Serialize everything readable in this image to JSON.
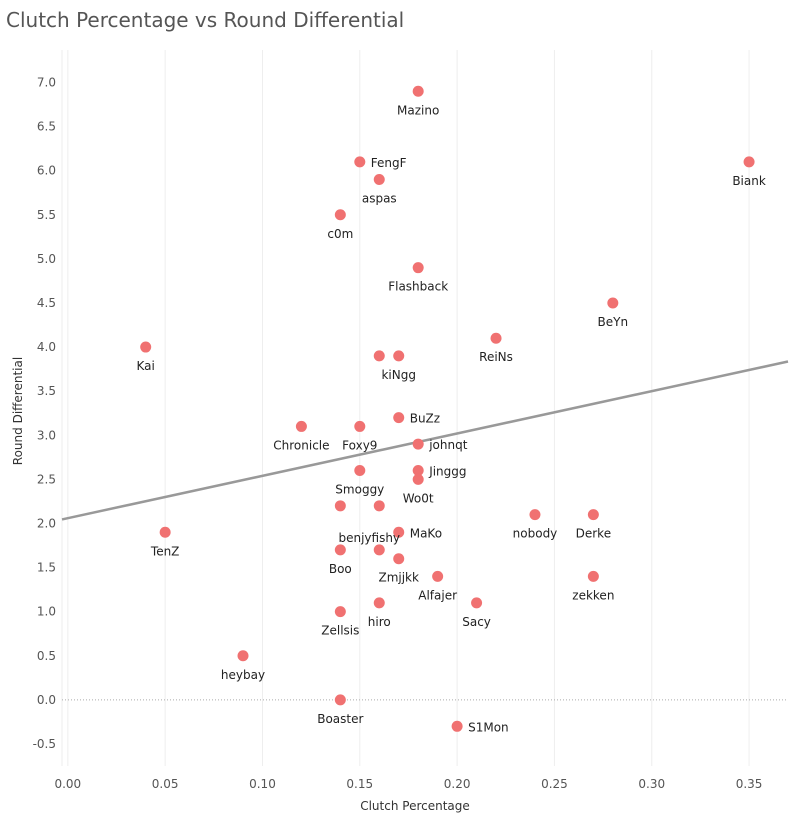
{
  "chart_data": {
    "type": "scatter",
    "title": "Clutch Percentage vs Round Differential",
    "xlabel": "Clutch Percentage",
    "ylabel": "Round Differential",
    "xlim": [
      -0.003,
      0.37
    ],
    "ylim": [
      -0.75,
      7.3
    ],
    "x_ticks": [
      0.0,
      0.05,
      0.1,
      0.15,
      0.2,
      0.25,
      0.3,
      0.35
    ],
    "x_tick_labels": [
      "0.00",
      "0.05",
      "0.10",
      "0.15",
      "0.20",
      "0.25",
      "0.30",
      "0.35"
    ],
    "y_ticks": [
      -0.5,
      0.0,
      0.5,
      1.0,
      1.5,
      2.0,
      2.5,
      3.0,
      3.5,
      4.0,
      4.5,
      5.0,
      5.5,
      6.0,
      6.5,
      7.0
    ],
    "y_tick_labels": [
      "-0.5",
      "0.0",
      "0.5",
      "1.0",
      "1.5",
      "2.0",
      "2.5",
      "3.0",
      "3.5",
      "4.0",
      "4.5",
      "5.0",
      "5.5",
      "6.0",
      "6.5",
      "7.0"
    ],
    "grid": "vertical",
    "zero_line": "dotted",
    "point_color": "#f07171",
    "trend_color": "#999999",
    "trend_line": {
      "intercept": 2.06,
      "slope": 4.8
    },
    "points": [
      {
        "name": "Mazino",
        "x": 0.18,
        "y": 6.9,
        "label_pos": "below"
      },
      {
        "name": "FengF",
        "x": 0.15,
        "y": 6.1,
        "label_pos": "right"
      },
      {
        "name": "Biank",
        "x": 0.35,
        "y": 6.1,
        "label_pos": "below"
      },
      {
        "name": "aspas",
        "x": 0.16,
        "y": 5.9,
        "label_pos": "below"
      },
      {
        "name": "c0m",
        "x": 0.14,
        "y": 5.5,
        "label_pos": "below"
      },
      {
        "name": "Flashback",
        "x": 0.18,
        "y": 4.9,
        "label_pos": "below"
      },
      {
        "name": "BeYn",
        "x": 0.28,
        "y": 4.5,
        "label_pos": "below"
      },
      {
        "name": "ReiNs",
        "x": 0.22,
        "y": 4.1,
        "label_pos": "below"
      },
      {
        "name": "Kai",
        "x": 0.04,
        "y": 4.0,
        "label_pos": "below"
      },
      {
        "name": "",
        "x": 0.16,
        "y": 3.9,
        "label_pos": "none"
      },
      {
        "name": "kiNgg",
        "x": 0.17,
        "y": 3.9,
        "label_pos": "below"
      },
      {
        "name": "BuZz",
        "x": 0.17,
        "y": 3.2,
        "label_pos": "right"
      },
      {
        "name": "Chronicle",
        "x": 0.12,
        "y": 3.1,
        "label_pos": "below"
      },
      {
        "name": "Foxy9",
        "x": 0.15,
        "y": 3.1,
        "label_pos": "below"
      },
      {
        "name": "johnqt",
        "x": 0.18,
        "y": 2.9,
        "label_pos": "right"
      },
      {
        "name": "Smoggy",
        "x": 0.15,
        "y": 2.6,
        "label_pos": "below"
      },
      {
        "name": "Jinggg",
        "x": 0.18,
        "y": 2.6,
        "label_pos": "right"
      },
      {
        "name": "Wo0t",
        "x": 0.18,
        "y": 2.5,
        "label_pos": "below"
      },
      {
        "name": "",
        "x": 0.14,
        "y": 2.2,
        "label_pos": "none"
      },
      {
        "name": "benjyfishy",
        "x": 0.16,
        "y": 2.2,
        "label_pos": "below-left"
      },
      {
        "name": "nobody",
        "x": 0.24,
        "y": 2.1,
        "label_pos": "below"
      },
      {
        "name": "Derke",
        "x": 0.27,
        "y": 2.1,
        "label_pos": "below"
      },
      {
        "name": "TenZ",
        "x": 0.05,
        "y": 1.9,
        "label_pos": "below"
      },
      {
        "name": "MaKo",
        "x": 0.17,
        "y": 1.9,
        "label_pos": "right"
      },
      {
        "name": "Boo",
        "x": 0.14,
        "y": 1.7,
        "label_pos": "below"
      },
      {
        "name": "",
        "x": 0.16,
        "y": 1.7,
        "label_pos": "none"
      },
      {
        "name": "Zmjjkk",
        "x": 0.17,
        "y": 1.6,
        "label_pos": "below"
      },
      {
        "name": "Alfajer",
        "x": 0.19,
        "y": 1.4,
        "label_pos": "below"
      },
      {
        "name": "zekken",
        "x": 0.27,
        "y": 1.4,
        "label_pos": "below"
      },
      {
        "name": "hiro",
        "x": 0.16,
        "y": 1.1,
        "label_pos": "below"
      },
      {
        "name": "Sacy",
        "x": 0.21,
        "y": 1.1,
        "label_pos": "below"
      },
      {
        "name": "Zellsis",
        "x": 0.14,
        "y": 1.0,
        "label_pos": "below"
      },
      {
        "name": "heybay",
        "x": 0.09,
        "y": 0.5,
        "label_pos": "below"
      },
      {
        "name": "Boaster",
        "x": 0.14,
        "y": 0.0,
        "label_pos": "below"
      },
      {
        "name": "S1Mon",
        "x": 0.2,
        "y": -0.3,
        "label_pos": "right"
      }
    ]
  }
}
